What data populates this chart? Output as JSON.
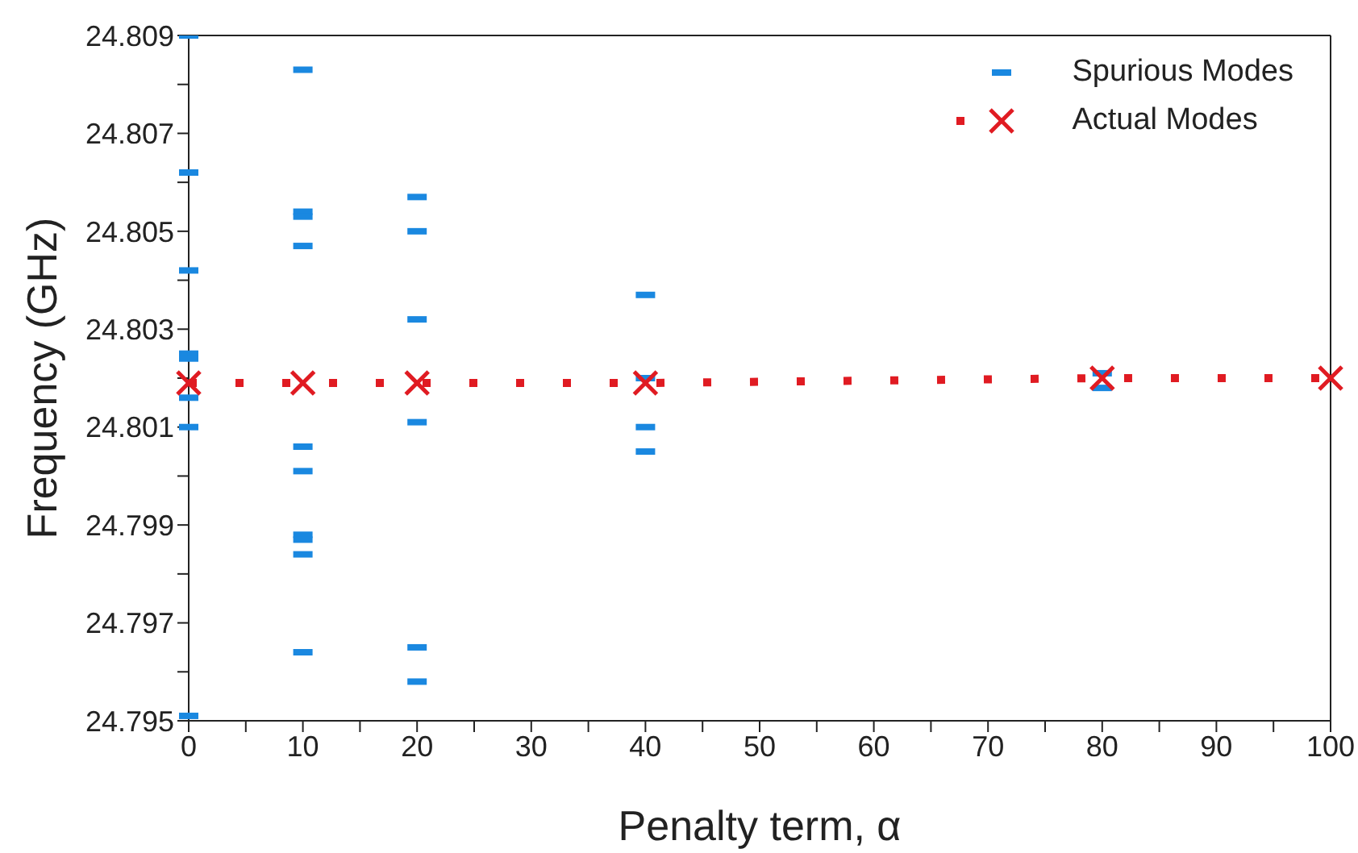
{
  "chart_data": {
    "type": "scatter",
    "xlabel": "Penalty term, α",
    "ylabel": "Frequency (GHz)",
    "xlim": [
      0,
      100
    ],
    "ylim": [
      24.795,
      24.809
    ],
    "xticks": [
      0,
      {
        "value": 5,
        "label": null
      },
      10,
      {
        "value": 15,
        "label": null
      },
      20,
      {
        "value": 25,
        "label": null
      },
      30,
      {
        "value": 35,
        "label": null
      },
      40,
      {
        "value": 45,
        "label": null
      },
      50,
      {
        "value": 55,
        "label": null
      },
      60,
      {
        "value": 65,
        "label": null
      },
      70,
      {
        "value": 75,
        "label": null
      },
      80,
      {
        "value": 85,
        "label": null
      },
      90,
      {
        "value": 95,
        "label": null
      },
      100
    ],
    "yticks": [
      24.795,
      {
        "value": 24.796,
        "label": null
      },
      24.797,
      {
        "value": 24.798,
        "label": null
      },
      24.799,
      {
        "value": 24.8,
        "label": null
      },
      24.801,
      {
        "value": 24.802,
        "label": null
      },
      24.803,
      {
        "value": 24.804,
        "label": null
      },
      24.805,
      {
        "value": 24.806,
        "label": null
      },
      24.807,
      {
        "value": 24.808,
        "label": null
      },
      24.809
    ],
    "legend": "top right",
    "series": [
      {
        "name": "Spurious Modes",
        "type": "scatter",
        "color": "#1a88e0",
        "x": [
          0,
          0,
          0,
          0,
          0,
          0,
          0,
          0,
          10,
          10,
          10,
          10,
          10,
          10,
          10,
          10,
          10,
          10,
          20,
          20,
          20,
          20,
          20,
          20,
          40,
          40,
          40,
          40,
          80,
          80
        ],
        "values": [
          24.809,
          24.8062,
          24.8042,
          24.8025,
          24.8024,
          24.8016,
          24.801,
          24.7951,
          24.8083,
          24.8054,
          24.8053,
          24.8047,
          24.8006,
          24.8001,
          24.7988,
          24.7987,
          24.7984,
          24.7964,
          24.8057,
          24.805,
          24.8032,
          24.8011,
          24.7965,
          24.7958,
          24.8037,
          24.802,
          24.801,
          24.8005,
          24.8021,
          24.8018
        ]
      },
      {
        "name": "Actual Modes",
        "type": "line",
        "color": "#e01b22",
        "marker": "cross",
        "line_style": "dotted",
        "x": [
          0,
          10,
          20,
          40,
          80,
          100
        ],
        "values": [
          24.8019,
          24.8019,
          24.8019,
          24.8019,
          24.802,
          24.802
        ]
      }
    ]
  }
}
